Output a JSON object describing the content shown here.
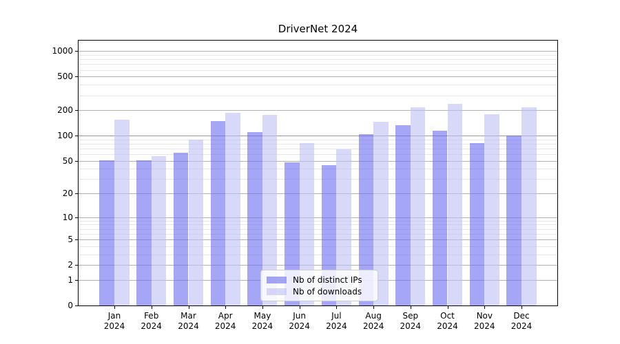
{
  "chart_data": {
    "type": "bar",
    "title": "DriverNet 2024",
    "categories": [
      "Jan",
      "Feb",
      "Mar",
      "Apr",
      "May",
      "Jun",
      "Jul",
      "Aug",
      "Sep",
      "Oct",
      "Nov",
      "Dec"
    ],
    "category_year": "2024",
    "series": [
      {
        "name": "Nb of distinct IPs",
        "key": "distinct-ips",
        "color": "rgba(106,106,240,0.6)",
        "values": [
          51,
          51,
          62,
          148,
          110,
          48,
          44,
          103,
          134,
          115,
          82,
          101
        ]
      },
      {
        "name": "Nb of downloads",
        "key": "downloads",
        "color": "rgba(190,190,245,0.6)",
        "values": [
          155,
          57,
          90,
          187,
          175,
          82,
          68,
          145,
          215,
          237,
          179,
          217
        ]
      }
    ],
    "xlabel": "",
    "ylabel": "",
    "yscale": "log10(value+1)",
    "ylim": [
      0,
      1330
    ],
    "yticks": [
      0,
      1,
      2,
      5,
      10,
      20,
      50,
      100,
      200,
      500,
      1000
    ],
    "yticks_minor": [
      3,
      4,
      6,
      7,
      8,
      9,
      30,
      40,
      60,
      70,
      80,
      90,
      300,
      400,
      600,
      700,
      800,
      900
    ],
    "grid": "both",
    "legend_position": "inset lower center",
    "colors": {
      "grid_major": "#b2b2b2",
      "grid_major_100": "#999999",
      "grid_minor": "#e7e7e7",
      "axis": "#000000",
      "text": "#000000",
      "background": "#ffffff"
    }
  }
}
